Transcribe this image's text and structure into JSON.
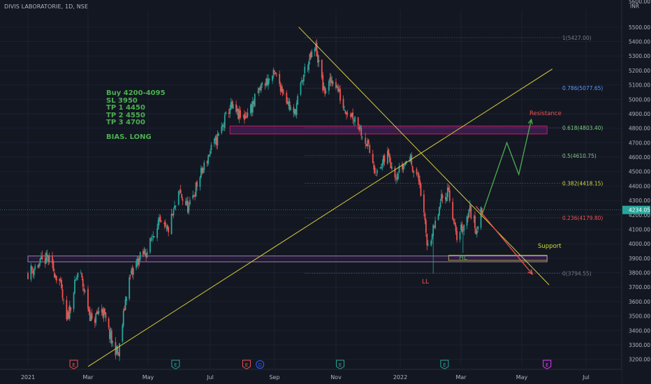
{
  "chart_title": "DIVIS LABORATORIE, 1D, NSE",
  "currency": "INR",
  "price_axis_top_label": "5600.00",
  "trade_plan": [
    "Buy 4200-4095",
    "SL 3950",
    "TP 1 4450",
    "TP 2 4550",
    "TP 3 4700"
  ],
  "bias": "BIAS. LONG",
  "annotations": {
    "resistance": "Resistance",
    "support": "Support",
    "ll": "LL",
    "hl": "HL"
  },
  "current_price": "4234.05",
  "colors": {
    "background": "#131722",
    "up": "#26a69a",
    "down": "#ef5350",
    "trendline": "#d8cc3a",
    "plan_green": "#4caf50",
    "zone": "#9c27b0",
    "support_zone_border": "#cddc39"
  },
  "chart_data": {
    "type": "candlestick",
    "title": "DIVIS LABORATORIE, 1D, NSE",
    "y_range": [
      3150,
      5620
    ],
    "y_ticks": [
      3200,
      3300,
      3400,
      3500,
      3600,
      3700,
      3800,
      3900,
      4000,
      4100,
      4200,
      4300,
      4400,
      4500,
      4600,
      4700,
      4800,
      4900,
      5000,
      5100,
      5200,
      5300,
      5400,
      5500
    ],
    "x_labels": [
      "2021",
      "Mar",
      "May",
      "Jul",
      "Sep",
      "Nov",
      "2022",
      "Mar",
      "May",
      "Jul"
    ],
    "price_path": [
      [
        "2021-01-01",
        3800
      ],
      [
        "2021-01-20",
        3900
      ],
      [
        "2021-02-01",
        3740
      ],
      [
        "2021-02-08",
        3460
      ],
      [
        "2021-02-20",
        3830
      ],
      [
        "2021-03-05",
        3450
      ],
      [
        "2021-03-15",
        3560
      ],
      [
        "2021-03-25",
        3320
      ],
      [
        "2021-04-01",
        3230
      ],
      [
        "2021-04-10",
        3720
      ],
      [
        "2021-04-20",
        3880
      ],
      [
        "2021-05-01",
        3960
      ],
      [
        "2021-05-10",
        4150
      ],
      [
        "2021-05-20",
        4080
      ],
      [
        "2021-06-01",
        4350
      ],
      [
        "2021-06-10",
        4240
      ],
      [
        "2021-06-20",
        4450
      ],
      [
        "2021-07-01",
        4640
      ],
      [
        "2021-07-10",
        4760
      ],
      [
        "2021-07-20",
        4950
      ],
      [
        "2021-08-01",
        4860
      ],
      [
        "2021-08-10",
        4950
      ],
      [
        "2021-08-20",
        5100
      ],
      [
        "2021-09-01",
        5170
      ],
      [
        "2021-09-10",
        5060
      ],
      [
        "2021-09-20",
        4880
      ],
      [
        "2021-10-01",
        5200
      ],
      [
        "2021-10-12",
        5360
      ],
      [
        "2021-10-20",
        5050
      ],
      [
        "2021-10-30",
        5150
      ],
      [
        "2021-11-08",
        4950
      ],
      [
        "2021-11-20",
        4870
      ],
      [
        "2021-12-01",
        4680
      ],
      [
        "2021-12-10",
        4480
      ],
      [
        "2021-12-20",
        4620
      ],
      [
        "2021-12-28",
        4480
      ],
      [
        "2022-01-10",
        4600
      ],
      [
        "2022-01-20",
        4420
      ],
      [
        "2022-01-27",
        4000
      ],
      [
        "2022-02-03",
        4100
      ],
      [
        "2022-02-10",
        4300
      ],
      [
        "2022-02-17",
        4380
      ],
      [
        "2022-02-24",
        4050
      ],
      [
        "2022-03-03",
        4120
      ],
      [
        "2022-03-10",
        4240
      ],
      [
        "2022-03-16",
        4100
      ],
      [
        "2022-03-22",
        4234
      ]
    ],
    "extremes": [
      {
        "date": "2021-10-09",
        "price": 5427
      },
      {
        "date": "2022-02-02",
        "price": 3795
      },
      {
        "date": "2022-03-03",
        "price": 3935
      }
    ],
    "fibonacci": {
      "levels": [
        {
          "label": "1(5427.00)",
          "price": 5427.0
        },
        {
          "label": "0.786(5077.65)",
          "price": 5077.65
        },
        {
          "label": "0.618(4803.40)",
          "price": 4803.4
        },
        {
          "label": "0.5(4610.75)",
          "price": 4610.75
        },
        {
          "label": "0.382(4418.15)",
          "price": 4418.15
        },
        {
          "label": "0.236(4179.80)",
          "price": 4179.8
        },
        {
          "label": "0(3794.55)",
          "price": 3794.55
        }
      ],
      "start_date": "2021-10-01",
      "end_date": "2022-05-01"
    },
    "zones": [
      {
        "name": "Resistance",
        "from": 4760,
        "to": 4815,
        "start_date": "2021-07-20",
        "end_date": "2022-05-25"
      },
      {
        "name": "Support",
        "from": 3885,
        "to": 3920,
        "start_date": "2022-02-17",
        "end_date": "2022-05-25"
      },
      {
        "name": "",
        "from": 3875,
        "to": 3915,
        "start_date": "2021-01-01",
        "end_date": "2022-05-25"
      }
    ],
    "trendlines": [
      {
        "from": [
          "2021-09-25",
          5500
        ],
        "to": [
          "2022-05-27",
          3715
        ]
      },
      {
        "from": [
          "2021-03-01",
          3150
        ],
        "to": [
          "2022-05-30",
          5210
        ]
      }
    ],
    "projections": [
      {
        "color": "green",
        "path": [
          [
            "2022-03-21",
            4180
          ],
          [
            "2022-03-31",
            4380
          ],
          [
            "2022-04-16",
            4700
          ],
          [
            "2022-04-28",
            4480
          ],
          [
            "2022-05-10",
            4860
          ]
        ]
      },
      {
        "color": "red",
        "path": [
          [
            "2022-03-16",
            4260
          ],
          [
            "2022-05-11",
            3790
          ]
        ]
      }
    ],
    "event_markers": [
      {
        "date": "2021-02-15",
        "type": "E",
        "color": "#ef5350"
      },
      {
        "date": "2021-05-28",
        "type": "E",
        "color": "#26a69a"
      },
      {
        "date": "2021-08-05",
        "type": "E",
        "color": "#ef5350"
      },
      {
        "date": "2021-08-18",
        "type": "D",
        "color": "#2962ff"
      },
      {
        "date": "2021-11-05",
        "type": "E",
        "color": "#26a69a"
      },
      {
        "date": "2022-02-13",
        "type": "E",
        "color": "#26a69a"
      },
      {
        "date": "2022-05-25",
        "type": "E",
        "color": "#e040fb"
      }
    ]
  }
}
